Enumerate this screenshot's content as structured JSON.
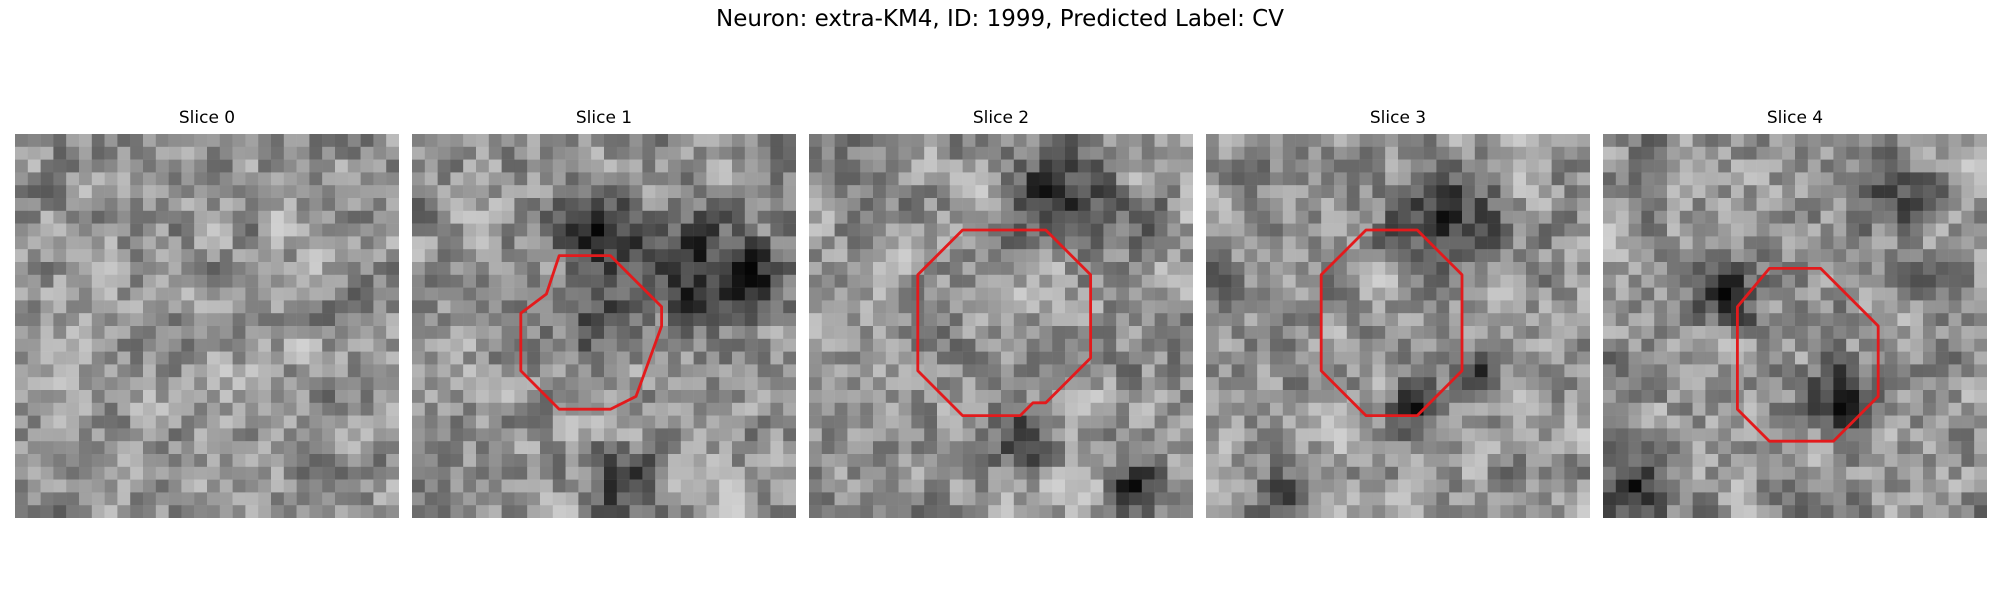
{
  "figure": {
    "title": "Neuron: extra-KM4, ID: 1999, Predicted Label: CV"
  },
  "style": {
    "outline_color": "#e31a1c",
    "colormap": "gray"
  },
  "grid_size": 30,
  "slices": [
    {
      "title": "Slice 0",
      "outline": [],
      "dark_blobs": [],
      "seed": 11
    },
    {
      "title": "Slice 1",
      "outline": [
        [
          11.5,
          9.5
        ],
        [
          15.5,
          9.5
        ],
        [
          19.5,
          13.5
        ],
        [
          19.5,
          15.0
        ],
        [
          17.5,
          20.5
        ],
        [
          15.5,
          21.5
        ],
        [
          11.5,
          21.5
        ],
        [
          8.5,
          18.5
        ],
        [
          8.5,
          14.0
        ],
        [
          10.5,
          12.5
        ]
      ],
      "dark_blobs": [
        [
          14,
          7,
          5,
          0.5
        ],
        [
          22,
          10,
          6,
          0.45
        ],
        [
          27,
          11,
          4,
          0.4
        ],
        [
          14,
          14,
          5,
          0.35
        ],
        [
          16,
          27,
          4,
          0.4
        ]
      ],
      "seed": 23
    },
    {
      "title": "Slice 2",
      "outline": [
        [
          12.0,
          7.5
        ],
        [
          18.5,
          7.5
        ],
        [
          22.0,
          11.0
        ],
        [
          22.0,
          17.5
        ],
        [
          19.5,
          20.0
        ],
        [
          18.5,
          21.0
        ],
        [
          17.5,
          21.0
        ],
        [
          16.5,
          22.0
        ],
        [
          12.0,
          22.0
        ],
        [
          8.5,
          18.5
        ],
        [
          8.5,
          11.0
        ]
      ],
      "dark_blobs": [
        [
          19,
          4,
          6,
          0.4
        ],
        [
          16,
          23,
          4,
          0.4
        ],
        [
          25,
          27,
          3,
          0.5
        ],
        [
          26,
          6,
          3,
          0.3
        ]
      ],
      "seed": 37
    },
    {
      "title": "Slice 3",
      "outline": [
        [
          12.5,
          7.5
        ],
        [
          16.5,
          7.5
        ],
        [
          20.0,
          11.0
        ],
        [
          20.0,
          18.5
        ],
        [
          16.5,
          22.0
        ],
        [
          12.5,
          22.0
        ],
        [
          9.0,
          18.5
        ],
        [
          9.0,
          11.0
        ]
      ],
      "dark_blobs": [
        [
          18,
          6,
          6,
          0.45
        ],
        [
          16,
          21,
          3,
          0.45
        ],
        [
          21,
          18,
          3,
          0.3
        ],
        [
          6,
          28,
          4,
          0.3
        ]
      ],
      "seed": 51
    },
    {
      "title": "Slice 4",
      "outline": [
        [
          13.0,
          10.5
        ],
        [
          17.0,
          10.5
        ],
        [
          21.5,
          15.0
        ],
        [
          21.5,
          20.5
        ],
        [
          18.0,
          24.0
        ],
        [
          13.0,
          24.0
        ],
        [
          10.5,
          21.5
        ],
        [
          10.5,
          13.5
        ]
      ],
      "dark_blobs": [
        [
          9,
          12,
          4,
          0.45
        ],
        [
          18,
          20,
          4,
          0.45
        ],
        [
          2,
          27,
          4,
          0.4
        ],
        [
          22,
          4,
          5,
          0.25
        ]
      ],
      "seed": 64
    }
  ]
}
